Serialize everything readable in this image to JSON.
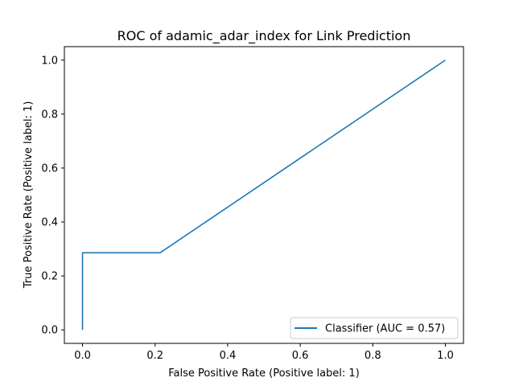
{
  "chart_data": {
    "type": "line",
    "title": "ROC of adamic_adar_index for Link Prediction",
    "xlabel": "False Positive Rate (Positive label: 1)",
    "ylabel": "True Positive Rate (Positive label: 1)",
    "xlim": [
      -0.05,
      1.05
    ],
    "ylim": [
      -0.05,
      1.05
    ],
    "x_ticks": [
      "0.0",
      "0.2",
      "0.4",
      "0.6",
      "0.8",
      "1.0"
    ],
    "y_ticks": [
      "0.0",
      "0.2",
      "0.4",
      "0.6",
      "0.8",
      "1.0"
    ],
    "grid": false,
    "legend_position": "lower-right",
    "series": [
      {
        "name": "Classifier (AUC = 0.57)",
        "color": "#1f77b4",
        "x": [
          0.0,
          0.0,
          0.214,
          1.0
        ],
        "y": [
          0.0,
          0.286,
          0.286,
          1.0
        ]
      }
    ]
  }
}
